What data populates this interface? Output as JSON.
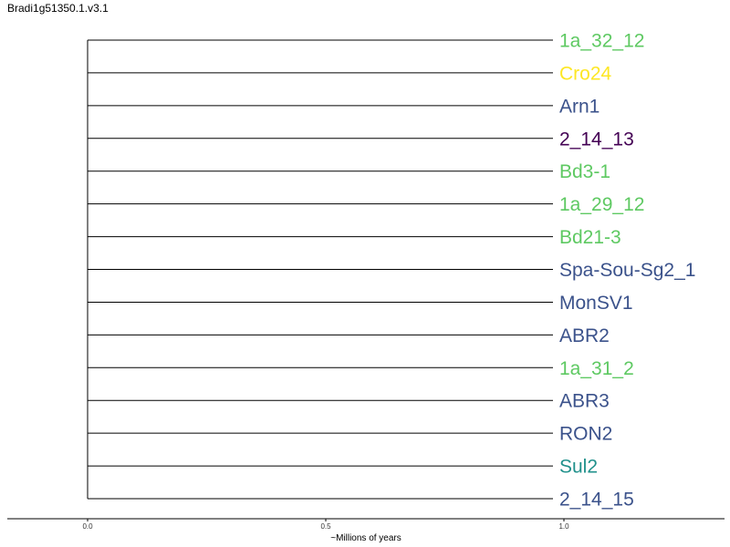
{
  "title": "Bradi1g51350.1.v3.1",
  "chart_data": {
    "type": "dendrogram",
    "title": "Bradi1g51350.1.v3.1",
    "xlabel": "~Millions of years",
    "ylabel": "",
    "xlim": [
      0.0,
      1.0
    ],
    "xticks": [
      "0.0",
      "0.5",
      "1.0"
    ],
    "grid": false,
    "root_x": 0.0,
    "leaves": [
      {
        "label": "1a_32_12",
        "x": 1.0,
        "color": "#5ec962"
      },
      {
        "label": "Cro24",
        "x": 1.0,
        "color": "#fde725"
      },
      {
        "label": "Arn1",
        "x": 1.0,
        "color": "#3b528b"
      },
      {
        "label": "2_14_13",
        "x": 1.0,
        "color": "#440154"
      },
      {
        "label": "Bd3-1",
        "x": 1.0,
        "color": "#5ec962"
      },
      {
        "label": "1a_29_12",
        "x": 1.0,
        "color": "#5ec962"
      },
      {
        "label": "Bd21-3",
        "x": 1.0,
        "color": "#5ec962"
      },
      {
        "label": "Spa-Sou-Sg2_1",
        "x": 1.0,
        "color": "#3b528b"
      },
      {
        "label": "MonSV1",
        "x": 1.0,
        "color": "#3b528b"
      },
      {
        "label": "ABR2",
        "x": 1.0,
        "color": "#3b528b"
      },
      {
        "label": "1a_31_2",
        "x": 1.0,
        "color": "#5ec962"
      },
      {
        "label": "ABR3",
        "x": 1.0,
        "color": "#3b528b"
      },
      {
        "label": "RON2",
        "x": 1.0,
        "color": "#3b528b"
      },
      {
        "label": "Sul2",
        "x": 1.0,
        "color": "#21918c"
      },
      {
        "label": "2_14_15",
        "x": 1.0,
        "color": "#3b528b"
      }
    ]
  }
}
